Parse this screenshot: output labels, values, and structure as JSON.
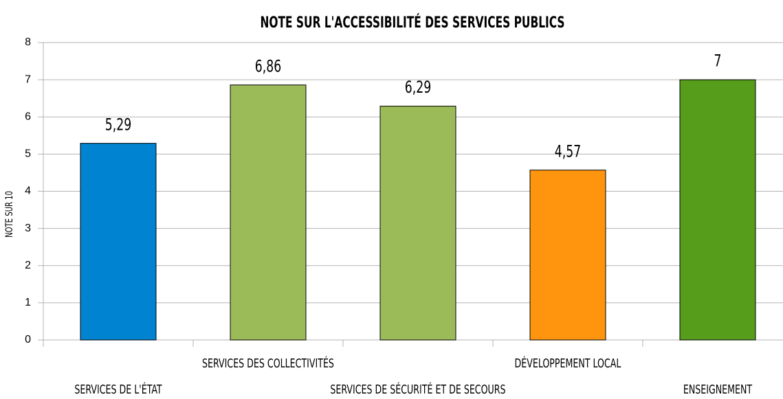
{
  "chart_data": {
    "type": "bar",
    "title": "NOTE SUR L'ACCESSIBILITÉ DES SERVICES PUBLICS",
    "y_label": "NOTE SUR 10",
    "categories": [
      "SERVICES DE L'ÉTAT",
      "SERVICES DES COLLECTIVITÉS",
      "SERVICES DE SÉCURITÉ ET DE SECOURS",
      "DÉVELOPPEMENT LOCAL",
      "ENSEIGNEMENT"
    ],
    "values": [
      5.29,
      6.86,
      6.29,
      4.57,
      7
    ],
    "value_labels": [
      "5,29",
      "6,86",
      "6,29",
      "4,57",
      "7"
    ],
    "colors": [
      "#0084d1",
      "#9bbb59",
      "#9bbb59",
      "#ff950e",
      "#579d1c"
    ],
    "ylim": [
      0,
      8
    ],
    "yticks": [
      0,
      1,
      2,
      3,
      4,
      5,
      6,
      7,
      8
    ],
    "grid": true
  }
}
